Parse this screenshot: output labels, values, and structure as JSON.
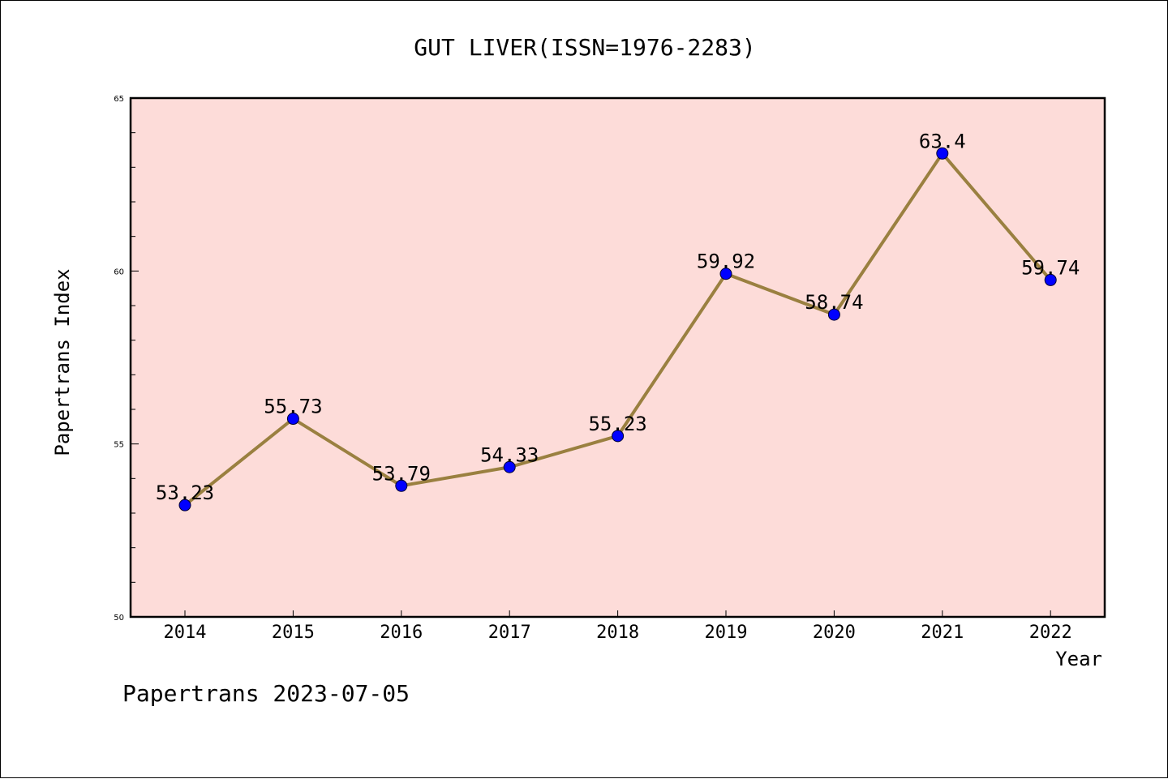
{
  "chart_data": {
    "type": "line",
    "title": "GUT LIVER(ISSN=1976-2283)",
    "xlabel": "Year",
    "ylabel": "Papertrans Index",
    "categories": [
      "2014",
      "2015",
      "2016",
      "2017",
      "2018",
      "2019",
      "2020",
      "2021",
      "2022"
    ],
    "values": [
      53.23,
      55.73,
      53.79,
      54.33,
      55.23,
      59.92,
      58.74,
      63.4,
      59.74
    ],
    "data_labels": [
      "53.23",
      "55.73",
      "53.79",
      "54.33",
      "55.23",
      "59.92",
      "58.74",
      "63.4",
      "59.74"
    ],
    "ylim": [
      50,
      65
    ],
    "y_major_ticks": [
      50,
      55,
      60,
      65
    ],
    "y_minor_step": 1,
    "grid": false,
    "line_color": "#9a8040",
    "marker_color": "#0000ff",
    "plot_background": "#fddcd9",
    "footer": "Papertrans 2023-07-05"
  }
}
